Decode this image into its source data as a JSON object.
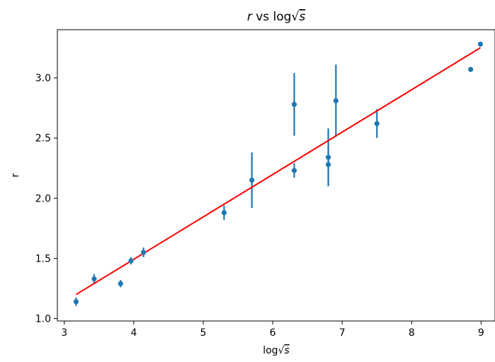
{
  "chart_data": {
    "type": "scatter",
    "title_var": "r",
    "title_mid": " vs log",
    "title_root": "s",
    "xlabel_prefix": "log",
    "xlabel_root": "s",
    "ylabel": "r",
    "xlim": [
      2.9,
      9.2
    ],
    "ylim": [
      0.98,
      3.4
    ],
    "x_ticks": [
      3,
      4,
      5,
      6,
      7,
      8,
      9
    ],
    "y_ticks": [
      1.0,
      1.5,
      2.0,
      2.5,
      3.0
    ],
    "x_tick_labels": [
      "3",
      "4",
      "5",
      "6",
      "7",
      "8",
      "9"
    ],
    "y_tick_labels": [
      "1.0",
      "1.5",
      "2.0",
      "2.5",
      "3.0"
    ],
    "grid": false,
    "series": [
      {
        "type": "errorbar",
        "color": "#1f77b4",
        "points": [
          {
            "x": 3.17,
            "y": 1.14,
            "err": 0.035
          },
          {
            "x": 3.43,
            "y": 1.33,
            "err": 0.04
          },
          {
            "x": 3.81,
            "y": 1.29,
            "err": 0.03
          },
          {
            "x": 3.96,
            "y": 1.48,
            "err": 0.03
          },
          {
            "x": 4.14,
            "y": 1.55,
            "err": 0.04
          },
          {
            "x": 5.3,
            "y": 1.88,
            "err": 0.06
          },
          {
            "x": 5.7,
            "y": 2.15,
            "err": 0.23
          },
          {
            "x": 6.31,
            "y": 2.78,
            "err": 0.26
          },
          {
            "x": 6.31,
            "y": 2.23,
            "err": 0.06
          },
          {
            "x": 6.8,
            "y": 2.34,
            "err": 0.24
          },
          {
            "x": 6.8,
            "y": 2.28,
            "err": 0.18
          },
          {
            "x": 6.91,
            "y": 2.81,
            "err": 0.3
          },
          {
            "x": 7.5,
            "y": 2.62,
            "err": 0.12
          },
          {
            "x": 8.85,
            "y": 3.07,
            "err": 0.02
          },
          {
            "x": 8.99,
            "y": 3.28,
            "err": 0.02
          }
        ]
      },
      {
        "type": "line",
        "color": "#ff0000",
        "x": [
          3.17,
          8.99
        ],
        "y": [
          1.2,
          3.25
        ]
      }
    ]
  }
}
